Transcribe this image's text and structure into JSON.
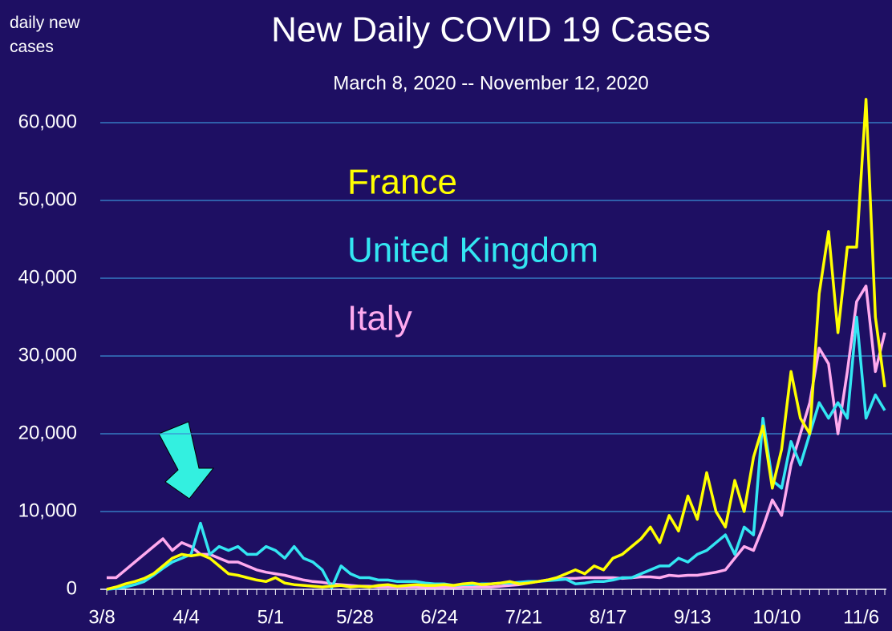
{
  "chart_data": {
    "type": "line",
    "title": "New Daily COVID 19 Cases",
    "subtitle": "March 8, 2020 -- November 12, 2020",
    "y_axis_label": "daily new cases",
    "categories": [
      "3/8",
      null,
      null,
      null,
      null,
      null,
      null,
      null,
      null,
      "4/4",
      null,
      null,
      null,
      null,
      null,
      null,
      null,
      null,
      "5/1",
      null,
      null,
      null,
      null,
      null,
      null,
      null,
      null,
      "5/28",
      null,
      null,
      null,
      null,
      null,
      null,
      null,
      null,
      "6/24",
      null,
      null,
      null,
      null,
      null,
      null,
      null,
      null,
      "7/21",
      null,
      null,
      null,
      null,
      null,
      null,
      null,
      null,
      "8/17",
      null,
      null,
      null,
      null,
      null,
      null,
      null,
      null,
      "9/13",
      null,
      null,
      null,
      null,
      null,
      null,
      null,
      null,
      "10/10",
      null,
      null,
      null,
      null,
      null,
      null,
      null,
      null,
      "11/6",
      null,
      null
    ],
    "series": [
      {
        "name": "France",
        "color": "#ffff00",
        "values": [
          0,
          300,
          700,
          1000,
          1400,
          2000,
          3000,
          4000,
          4500,
          4300,
          4500,
          4000,
          3000,
          2000,
          1800,
          1500,
          1200,
          1000,
          1500,
          800,
          600,
          500,
          400,
          300,
          400,
          500,
          300,
          400,
          300,
          500,
          600,
          400,
          500,
          600,
          500,
          500,
          600,
          500,
          700,
          800,
          600,
          700,
          800,
          1000,
          700,
          800,
          1000,
          1200,
          1500,
          2000,
          2500,
          2000,
          3000,
          2500,
          4000,
          4500,
          5500,
          6500,
          8000,
          6000,
          9500,
          7500,
          12000,
          9000,
          15000,
          10000,
          8000,
          14000,
          10000,
          17000,
          21000,
          13000,
          18000,
          28000,
          22000,
          20000,
          38000,
          46000,
          33000,
          44000,
          44000,
          63000,
          35000,
          26000
        ]
      },
      {
        "name": "United Kingdom",
        "color": "#33e6f2",
        "values": [
          0,
          100,
          300,
          600,
          1000,
          1800,
          2700,
          3500,
          4000,
          4500,
          8500,
          4500,
          5500,
          5000,
          5500,
          4500,
          4500,
          5500,
          5000,
          4000,
          5500,
          4000,
          3500,
          2500,
          200,
          3000,
          2000,
          1500,
          1500,
          1200,
          1200,
          1000,
          1000,
          1000,
          800,
          700,
          700,
          500,
          600,
          600,
          700,
          700,
          800,
          800,
          900,
          1000,
          1000,
          1100,
          1200,
          1300,
          700,
          800,
          1000,
          1000,
          1200,
          1500,
          1500,
          2000,
          2500,
          3000,
          3000,
          4000,
          3500,
          4500,
          5000,
          6000,
          7000,
          4500,
          8000,
          7000,
          22000,
          14000,
          13000,
          19000,
          16000,
          20000,
          24000,
          22000,
          24000,
          22000,
          35000,
          22000,
          25000,
          23000
        ]
      },
      {
        "name": "Italy",
        "color": "#ffaaee",
        "values": [
          1500,
          1500,
          2500,
          3500,
          4500,
          5500,
          6500,
          5000,
          6000,
          5500,
          4500,
          4500,
          4000,
          3500,
          3500,
          3000,
          2500,
          2200,
          2000,
          1800,
          1500,
          1200,
          1000,
          900,
          700,
          600,
          500,
          400,
          400,
          300,
          300,
          300,
          300,
          300,
          250,
          250,
          250,
          250,
          300,
          300,
          300,
          300,
          400,
          500,
          600,
          800,
          1000,
          1200,
          1300,
          1400,
          1400,
          1500,
          1500,
          1500,
          1500,
          1400,
          1500,
          1600,
          1600,
          1500,
          1800,
          1700,
          1800,
          1800,
          2000,
          2200,
          2500,
          4000,
          5500,
          5000,
          8000,
          11500,
          9500,
          16000,
          20000,
          24000,
          31000,
          29000,
          20000,
          28000,
          37000,
          39000,
          28000,
          33000
        ]
      }
    ],
    "ylim": [
      0,
      65000
    ],
    "yticks": [
      0,
      {
        "value": 10000,
        "label": "10,000"
      },
      {
        "value": 20000,
        "label": "20,000"
      },
      {
        "value": 30000,
        "label": "30,000"
      },
      {
        "value": 40000,
        "label": "40,000"
      },
      {
        "value": 50000,
        "label": "50,000"
      },
      {
        "value": 60000,
        "label": "60,000"
      }
    ],
    "grid": true
  }
}
